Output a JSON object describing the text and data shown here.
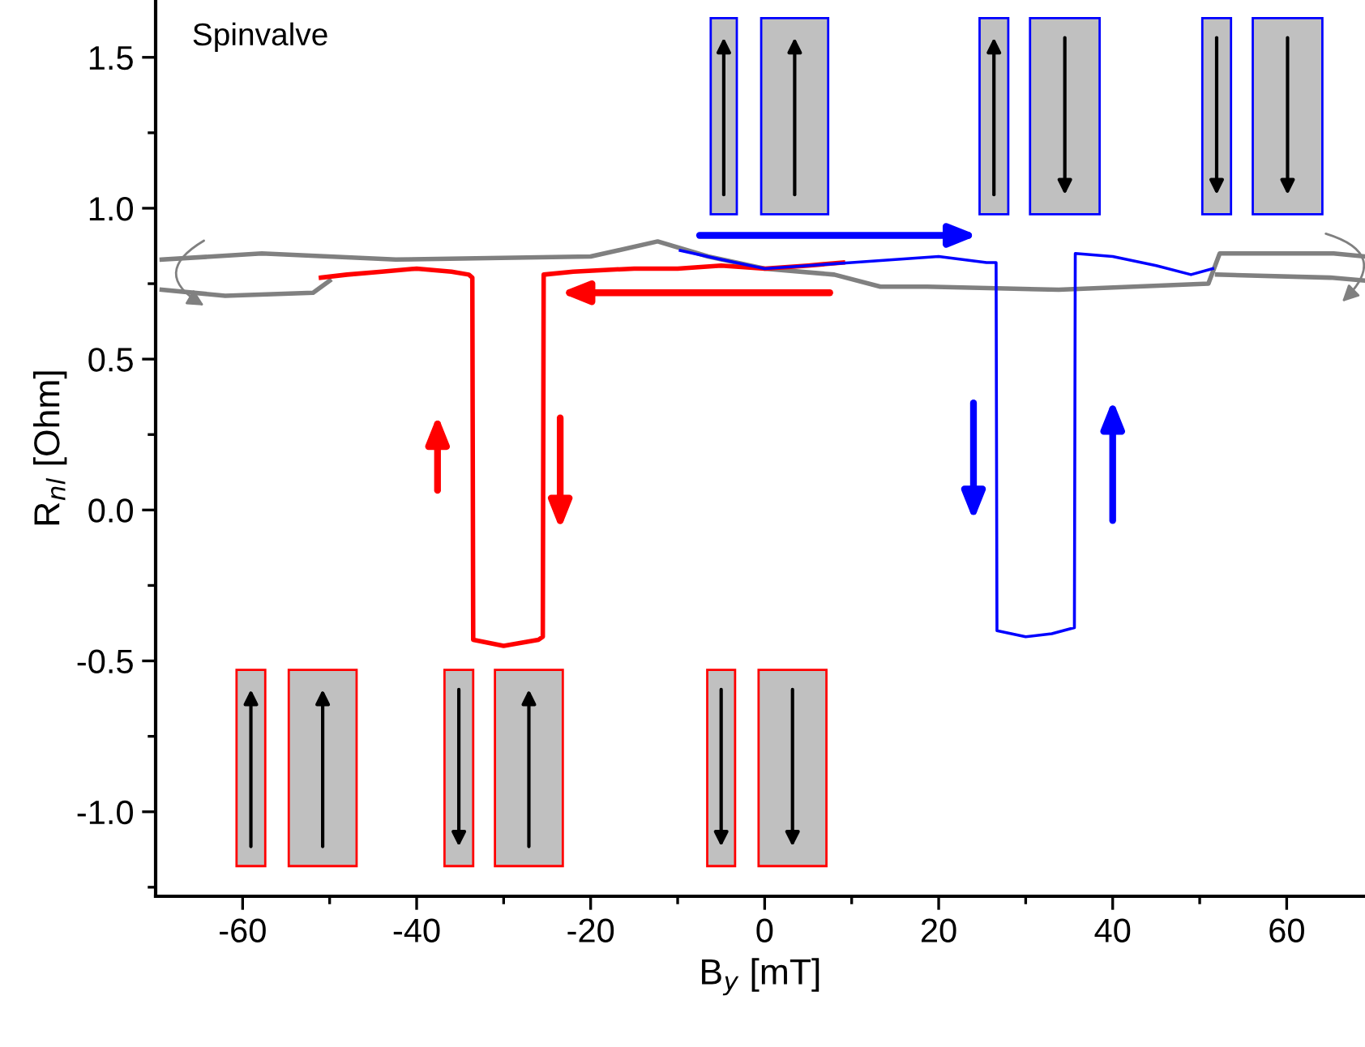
{
  "chart_data": {
    "type": "line",
    "xlabel": "B$_{y}$ [mT]",
    "ylabel": "R$_{nl}$ [Ohm]",
    "annotations": [
      "Spinvalve"
    ],
    "xlim": [
      -70,
      69
    ],
    "ylim": [
      -1.28,
      1.69
    ],
    "xticks": [
      -60,
      {
        "value": -50,
        "label": null
      },
      -40,
      {
        "value": -30,
        "label": null
      },
      -20,
      {
        "value": -10,
        "label": null
      },
      0,
      {
        "value": 10,
        "label": null
      },
      20,
      {
        "value": 30,
        "label": null
      },
      40,
      {
        "value": 50,
        "label": null
      },
      60
    ],
    "yticks": [
      {
        "value": -1.25,
        "label": null
      },
      {
        "value": -1.0,
        "label": "-1.0"
      },
      {
        "value": -0.75,
        "label": null
      },
      {
        "value": -0.5,
        "label": "-0.5"
      },
      {
        "value": -0.25,
        "label": null
      },
      {
        "value": 0.0,
        "label": "0.0"
      },
      {
        "value": 0.25,
        "label": null
      },
      {
        "value": 0.5,
        "label": "0.5"
      },
      {
        "value": 0.75,
        "label": null
      },
      {
        "value": 1.0,
        "label": "1.0"
      },
      {
        "value": 1.25,
        "label": null
      },
      {
        "value": 1.5,
        "label": "1.5"
      }
    ],
    "grid": false,
    "legend": false,
    "line_style": "solid",
    "marker": "none",
    "series": [
      {
        "color": "#808080",
        "x": [
          -69.3,
          -57.8,
          -42.4,
          -20,
          -12.3,
          -6.5,
          0,
          8,
          13.3,
          18.7,
          33.8,
          51,
          52.3,
          65.4,
          69
        ],
        "values": [
          0.83,
          0.85,
          0.83,
          0.84,
          0.89,
          0.84,
          0.8,
          0.78,
          0.74,
          0.74,
          0.73,
          0.75,
          0.85,
          0.85,
          0.84
        ]
      },
      {
        "color": "#808080",
        "x": [
          -69.3,
          -62,
          -51.9,
          -50
        ],
        "values": [
          0.73,
          0.71,
          0.72,
          0.76
        ]
      },
      {
        "color": "#808080",
        "x": [
          52,
          65,
          69
        ],
        "values": [
          0.78,
          0.77,
          0.76
        ]
      },
      {
        "color": "#ff0000",
        "x": [
          -51,
          -48,
          -44,
          -40,
          -36,
          -34,
          -33.6,
          -33.5,
          -30,
          -26,
          -25.5,
          -25.4,
          -22,
          -15,
          -10,
          -5,
          0,
          5,
          9
        ],
        "values": [
          0.77,
          0.78,
          0.79,
          0.8,
          0.79,
          0.78,
          0.77,
          -0.43,
          -0.45,
          -0.43,
          -0.42,
          0.78,
          0.79,
          0.8,
          0.8,
          0.81,
          0.8,
          0.81,
          0.82
        ]
      },
      {
        "color": "#0000ff",
        "x": [
          -9.7,
          -5,
          0,
          5,
          10,
          15,
          20,
          25.5,
          26.6,
          26.7,
          30,
          33,
          35.6,
          35.7,
          40,
          45,
          49,
          51.5
        ],
        "values": [
          0.86,
          0.83,
          0.8,
          0.81,
          0.82,
          0.83,
          0.84,
          0.82,
          0.82,
          -0.4,
          -0.42,
          -0.41,
          -0.39,
          0.85,
          0.84,
          0.81,
          0.78,
          0.8
        ]
      }
    ]
  }
}
